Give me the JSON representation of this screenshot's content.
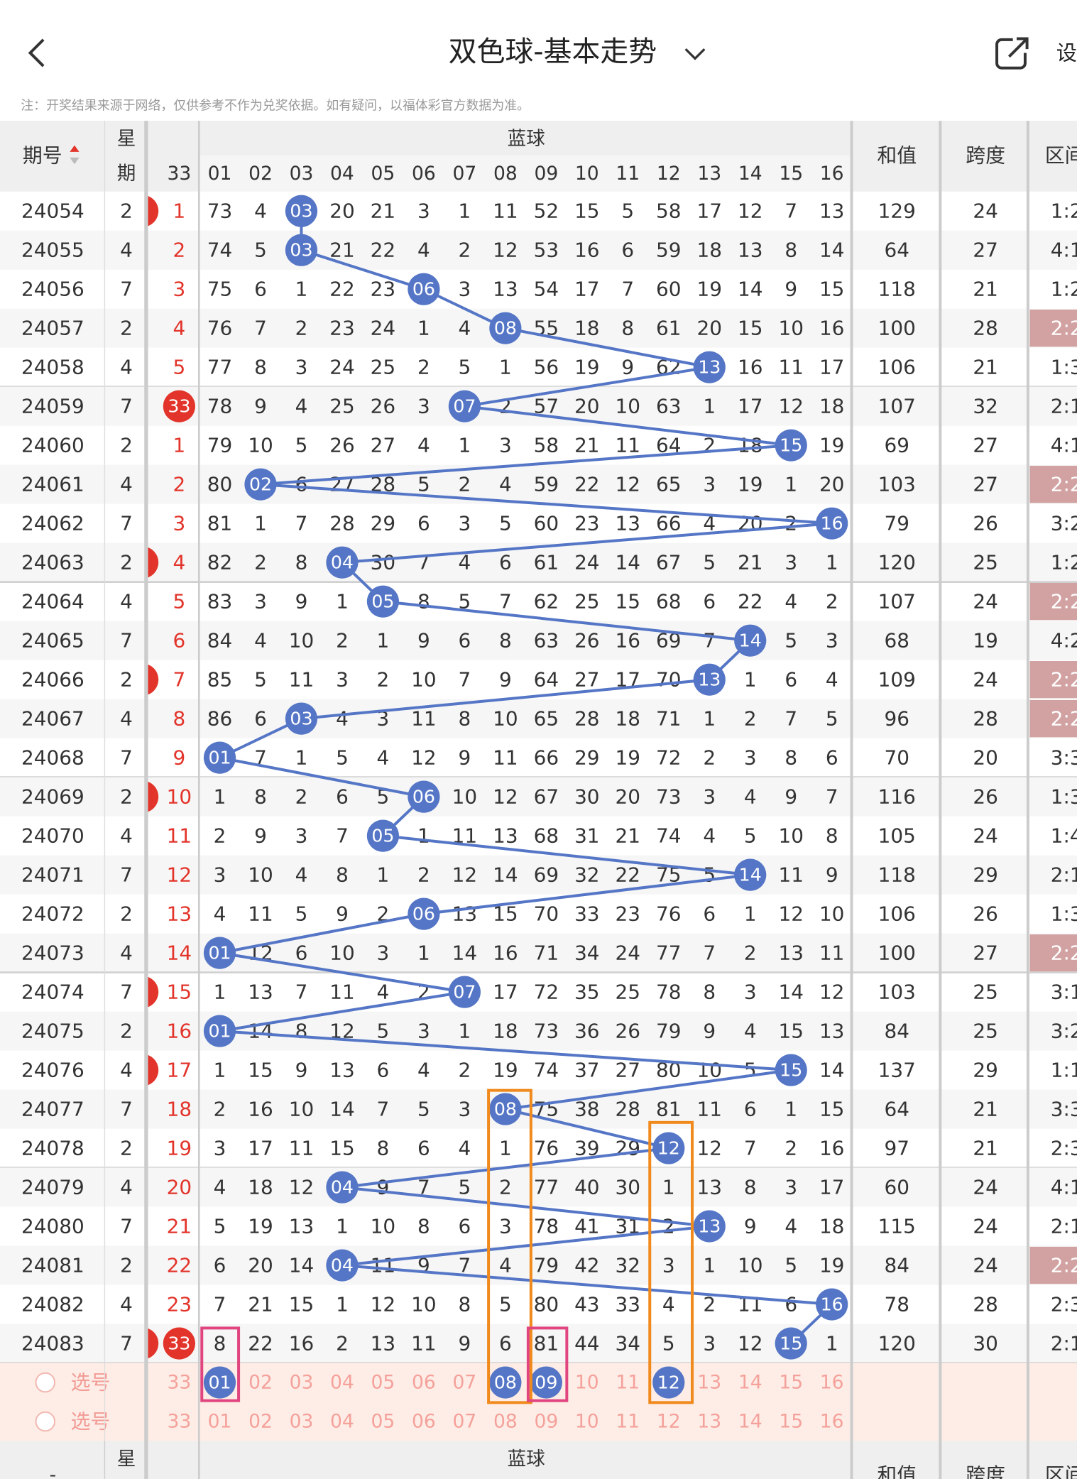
{
  "header": {
    "title": "双色球-基本走势",
    "settings": "设"
  },
  "note": "注：开奖结果来源于网络，仅供参考不作为兑奖依据。如有疑问，以福体彩官方数据为准。",
  "table": {
    "columns": {
      "issue": "期号",
      "weekday_top": "星",
      "weekday_bottom": "期",
      "blue": "蓝球",
      "red33": "33",
      "sum": "和值",
      "span": "跨度",
      "zone": "区间",
      "blue_numbers": [
        "01",
        "02",
        "03",
        "04",
        "05",
        "06",
        "07",
        "08",
        "09",
        "10",
        "11",
        "12",
        "13",
        "14",
        "15",
        "16"
      ]
    },
    "rows": [
      {
        "issue": "24054",
        "weekday": 2,
        "red33": 1,
        "blue": [
          73,
          4,
          "03",
          20,
          21,
          3,
          1,
          11,
          52,
          15,
          5,
          58,
          17,
          12,
          7,
          13
        ],
        "sum": 129,
        "span": 24,
        "zone": "1:2",
        "zone_highlight": false
      },
      {
        "issue": "24055",
        "weekday": 4,
        "red33": 2,
        "blue": [
          74,
          5,
          "03",
          21,
          22,
          4,
          2,
          12,
          53,
          16,
          6,
          59,
          18,
          13,
          8,
          14
        ],
        "sum": 64,
        "span": 27,
        "zone": "4:1",
        "zone_highlight": false
      },
      {
        "issue": "24056",
        "weekday": 7,
        "red33": 3,
        "blue": [
          75,
          6,
          1,
          22,
          23,
          "06",
          3,
          13,
          54,
          17,
          7,
          60,
          19,
          14,
          9,
          15
        ],
        "sum": 118,
        "span": 21,
        "zone": "1:2",
        "zone_highlight": false
      },
      {
        "issue": "24057",
        "weekday": 2,
        "red33": 4,
        "blue": [
          76,
          7,
          2,
          23,
          24,
          1,
          4,
          "08",
          55,
          18,
          8,
          61,
          20,
          15,
          10,
          16
        ],
        "sum": 100,
        "span": 28,
        "zone": "2:2",
        "zone_highlight": true
      },
      {
        "issue": "24058",
        "weekday": 4,
        "red33": 5,
        "blue": [
          77,
          8,
          3,
          24,
          25,
          2,
          5,
          1,
          56,
          19,
          9,
          62,
          "13",
          16,
          11,
          17
        ],
        "sum": 106,
        "span": 21,
        "zone": "1:3",
        "zone_highlight": false
      },
      {
        "issue": "24059",
        "weekday": 7,
        "red33": "33",
        "blue": [
          78,
          9,
          4,
          25,
          26,
          3,
          "07",
          2,
          57,
          20,
          10,
          63,
          1,
          17,
          12,
          18
        ],
        "sum": 107,
        "span": 32,
        "zone": "2:1",
        "zone_highlight": false
      },
      {
        "issue": "24060",
        "weekday": 2,
        "red33": 1,
        "blue": [
          79,
          10,
          5,
          26,
          27,
          4,
          1,
          3,
          58,
          21,
          11,
          64,
          2,
          18,
          "15",
          19
        ],
        "sum": 69,
        "span": 27,
        "zone": "4:1",
        "zone_highlight": false
      },
      {
        "issue": "24061",
        "weekday": 4,
        "red33": 2,
        "blue": [
          80,
          "02",
          6,
          27,
          28,
          5,
          2,
          4,
          59,
          22,
          12,
          65,
          3,
          19,
          1,
          20
        ],
        "sum": 103,
        "span": 27,
        "zone": "2:2",
        "zone_highlight": true
      },
      {
        "issue": "24062",
        "weekday": 7,
        "red33": 3,
        "blue": [
          81,
          1,
          7,
          28,
          29,
          6,
          3,
          5,
          60,
          23,
          13,
          66,
          4,
          20,
          2,
          "16"
        ],
        "sum": 79,
        "span": 26,
        "zone": "3:2",
        "zone_highlight": false
      },
      {
        "issue": "24063",
        "weekday": 2,
        "red33": 4,
        "blue": [
          82,
          2,
          8,
          "04",
          30,
          7,
          4,
          6,
          61,
          24,
          14,
          67,
          5,
          21,
          3,
          1
        ],
        "sum": 120,
        "span": 25,
        "zone": "1:2",
        "zone_highlight": false
      },
      {
        "issue": "24064",
        "weekday": 4,
        "red33": 5,
        "blue": [
          83,
          3,
          9,
          1,
          "05",
          8,
          5,
          7,
          62,
          25,
          15,
          68,
          6,
          22,
          4,
          2
        ],
        "sum": 107,
        "span": 24,
        "zone": "2:2",
        "zone_highlight": true
      },
      {
        "issue": "24065",
        "weekday": 7,
        "red33": 6,
        "blue": [
          84,
          4,
          10,
          2,
          1,
          9,
          6,
          8,
          63,
          26,
          16,
          69,
          7,
          "14",
          5,
          3
        ],
        "sum": 68,
        "span": 19,
        "zone": "4:2",
        "zone_highlight": false
      },
      {
        "issue": "24066",
        "weekday": 2,
        "red33": 7,
        "blue": [
          85,
          5,
          11,
          3,
          2,
          10,
          7,
          9,
          64,
          27,
          17,
          70,
          "13",
          1,
          6,
          4
        ],
        "sum": 109,
        "span": 24,
        "zone": "2:2",
        "zone_highlight": true
      },
      {
        "issue": "24067",
        "weekday": 4,
        "red33": 8,
        "blue": [
          86,
          6,
          "03",
          4,
          3,
          11,
          8,
          10,
          65,
          28,
          18,
          71,
          1,
          2,
          7,
          5
        ],
        "sum": 96,
        "span": 28,
        "zone": "2:2",
        "zone_highlight": true
      },
      {
        "issue": "24068",
        "weekday": 7,
        "red33": 9,
        "blue": [
          "01",
          7,
          1,
          5,
          4,
          12,
          9,
          11,
          66,
          29,
          19,
          72,
          2,
          3,
          8,
          6
        ],
        "sum": 70,
        "span": 20,
        "zone": "3:3",
        "zone_highlight": false
      },
      {
        "issue": "24069",
        "weekday": 2,
        "red33": 10,
        "blue": [
          1,
          8,
          2,
          6,
          5,
          "06",
          10,
          12,
          67,
          30,
          20,
          73,
          3,
          4,
          9,
          7
        ],
        "sum": 116,
        "span": 26,
        "zone": "1:3",
        "zone_highlight": false
      },
      {
        "issue": "24070",
        "weekday": 4,
        "red33": 11,
        "blue": [
          2,
          9,
          3,
          7,
          "05",
          1,
          11,
          13,
          68,
          31,
          21,
          74,
          4,
          5,
          10,
          8
        ],
        "sum": 105,
        "span": 24,
        "zone": "1:4",
        "zone_highlight": false
      },
      {
        "issue": "24071",
        "weekday": 7,
        "red33": 12,
        "blue": [
          3,
          10,
          4,
          8,
          1,
          2,
          12,
          14,
          69,
          32,
          22,
          75,
          5,
          "14",
          11,
          9
        ],
        "sum": 118,
        "span": 29,
        "zone": "2:1",
        "zone_highlight": false
      },
      {
        "issue": "24072",
        "weekday": 2,
        "red33": 13,
        "blue": [
          4,
          11,
          5,
          9,
          2,
          "06",
          13,
          15,
          70,
          33,
          23,
          76,
          6,
          1,
          12,
          10
        ],
        "sum": 106,
        "span": 26,
        "zone": "1:3",
        "zone_highlight": false
      },
      {
        "issue": "24073",
        "weekday": 4,
        "red33": 14,
        "blue": [
          "01",
          12,
          6,
          10,
          3,
          1,
          14,
          16,
          71,
          34,
          24,
          77,
          7,
          2,
          13,
          11
        ],
        "sum": 100,
        "span": 27,
        "zone": "2:2",
        "zone_highlight": true
      },
      {
        "issue": "24074",
        "weekday": 7,
        "red33": 15,
        "blue": [
          1,
          13,
          7,
          11,
          4,
          2,
          "07",
          17,
          72,
          35,
          25,
          78,
          8,
          3,
          14,
          12
        ],
        "sum": 103,
        "span": 25,
        "zone": "3:1",
        "zone_highlight": false
      },
      {
        "issue": "24075",
        "weekday": 2,
        "red33": 16,
        "blue": [
          "01",
          14,
          8,
          12,
          5,
          3,
          1,
          18,
          73,
          36,
          26,
          79,
          9,
          4,
          15,
          13
        ],
        "sum": 84,
        "span": 25,
        "zone": "3:2",
        "zone_highlight": false
      },
      {
        "issue": "24076",
        "weekday": 4,
        "red33": 17,
        "blue": [
          1,
          15,
          9,
          13,
          6,
          4,
          2,
          19,
          74,
          37,
          27,
          80,
          10,
          5,
          "15",
          14
        ],
        "sum": 137,
        "span": 29,
        "zone": "1:1",
        "zone_highlight": false
      },
      {
        "issue": "24077",
        "weekday": 7,
        "red33": 18,
        "blue": [
          2,
          16,
          10,
          14,
          7,
          5,
          3,
          "08",
          75,
          38,
          28,
          81,
          11,
          6,
          1,
          15
        ],
        "sum": 64,
        "span": 21,
        "zone": "3:3",
        "zone_highlight": false
      },
      {
        "issue": "24078",
        "weekday": 2,
        "red33": 19,
        "blue": [
          3,
          17,
          11,
          15,
          8,
          6,
          4,
          1,
          76,
          39,
          29,
          "12",
          12,
          7,
          2,
          16
        ],
        "sum": 97,
        "span": 21,
        "zone": "2:3",
        "zone_highlight": false
      },
      {
        "issue": "24079",
        "weekday": 4,
        "red33": 20,
        "blue": [
          4,
          18,
          12,
          "04",
          9,
          7,
          5,
          2,
          77,
          40,
          30,
          1,
          13,
          8,
          3,
          17
        ],
        "sum": 60,
        "span": 24,
        "zone": "4:1",
        "zone_highlight": false
      },
      {
        "issue": "24080",
        "weekday": 7,
        "red33": 21,
        "blue": [
          5,
          19,
          13,
          1,
          10,
          8,
          6,
          3,
          78,
          41,
          31,
          2,
          "13",
          9,
          4,
          18
        ],
        "sum": 115,
        "span": 24,
        "zone": "2:1",
        "zone_highlight": false
      },
      {
        "issue": "24081",
        "weekday": 2,
        "red33": 22,
        "blue": [
          6,
          20,
          14,
          "04",
          11,
          9,
          7,
          4,
          79,
          42,
          32,
          3,
          1,
          10,
          5,
          19
        ],
        "sum": 84,
        "span": 24,
        "zone": "2:2",
        "zone_highlight": true
      },
      {
        "issue": "24082",
        "weekday": 4,
        "red33": 23,
        "blue": [
          7,
          21,
          15,
          1,
          12,
          10,
          8,
          5,
          80,
          43,
          33,
          4,
          2,
          11,
          6,
          "16"
        ],
        "sum": 78,
        "span": 28,
        "zone": "2:3",
        "zone_highlight": false
      },
      {
        "issue": "24083",
        "weekday": 7,
        "red33": "33",
        "blue": [
          8,
          22,
          16,
          2,
          13,
          11,
          9,
          6,
          81,
          44,
          34,
          5,
          3,
          12,
          "15",
          1
        ],
        "sum": 120,
        "span": 30,
        "zone": "2:1",
        "zone_highlight": false
      }
    ],
    "select_rows": [
      {
        "label": "选号",
        "red33": "33",
        "numbers": [
          "01",
          "02",
          "03",
          "04",
          "05",
          "06",
          "07",
          "08",
          "09",
          "10",
          "11",
          "12",
          "13",
          "14",
          "15",
          "16"
        ],
        "picked": [
          true,
          false,
          false,
          false,
          false,
          false,
          false,
          true,
          true,
          false,
          false,
          true,
          false,
          false,
          false,
          false
        ]
      },
      {
        "label": "选号",
        "red33": "33",
        "numbers": [
          "01",
          "02",
          "03",
          "04",
          "05",
          "06",
          "07",
          "08",
          "09",
          "10",
          "11",
          "12",
          "13",
          "14",
          "15",
          "16"
        ],
        "picked": [
          false,
          false,
          false,
          false,
          false,
          false,
          false,
          false,
          false,
          false,
          false,
          false,
          false,
          false,
          false,
          false
        ]
      }
    ],
    "bottom_header": {
      "issue": "-",
      "weekday_top": "星",
      "weekday_bottom": "期",
      "blue": "蓝球",
      "sum": "和值",
      "span": "跨度",
      "zone": "区间"
    }
  }
}
